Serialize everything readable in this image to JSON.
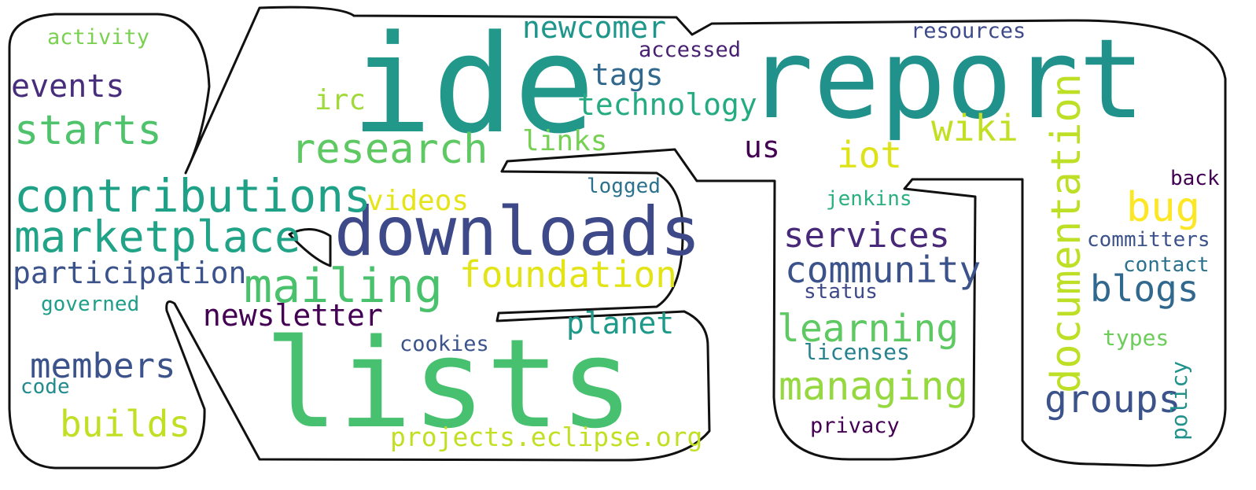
{
  "words": [
    {
      "text": "ide",
      "color": "#22988b"
    },
    {
      "text": "report",
      "color": "#21918c"
    },
    {
      "text": "lists",
      "color": "#47c06f"
    },
    {
      "text": "downloads",
      "color": "#3e4989"
    },
    {
      "text": "documentation",
      "color": "#bddf26"
    },
    {
      "text": "contributions",
      "color": "#1fa187"
    },
    {
      "text": "marketplace",
      "color": "#20a386"
    },
    {
      "text": "mailing",
      "color": "#4ac16d"
    },
    {
      "text": "starts",
      "color": "#4ec36b"
    },
    {
      "text": "research",
      "color": "#5ec962"
    },
    {
      "text": "foundation",
      "color": "#e2e418"
    },
    {
      "text": "managing",
      "color": "#95d840"
    },
    {
      "text": "learning",
      "color": "#5ec962"
    },
    {
      "text": "community",
      "color": "#3b528b"
    },
    {
      "text": "services",
      "color": "#482878"
    },
    {
      "text": "builds",
      "color": "#c0df25"
    },
    {
      "text": "members",
      "color": "#3b528b"
    },
    {
      "text": "participation",
      "color": "#3b528b"
    },
    {
      "text": "events",
      "color": "#472d7b"
    },
    {
      "text": "newsletter",
      "color": "#440154"
    },
    {
      "text": "groups",
      "color": "#3b528b"
    },
    {
      "text": "blogs",
      "color": "#31688e"
    },
    {
      "text": "bug",
      "color": "#fde725"
    },
    {
      "text": "wiki",
      "color": "#c2df23"
    },
    {
      "text": "iot",
      "color": "#dde318"
    },
    {
      "text": "technology",
      "color": "#25ab82"
    },
    {
      "text": "planet",
      "color": "#1f9a8a"
    },
    {
      "text": "tags",
      "color": "#31688e"
    },
    {
      "text": "newcomer",
      "color": "#1f968b"
    },
    {
      "text": "links",
      "color": "#75d054"
    },
    {
      "text": "videos",
      "color": "#e5e419"
    },
    {
      "text": "us",
      "color": "#440154"
    },
    {
      "text": "irc",
      "color": "#a0da39"
    },
    {
      "text": "projects.eclipse.org",
      "color": "#c2df23"
    },
    {
      "text": "cookies",
      "color": "#3b528b"
    },
    {
      "text": "accessed",
      "color": "#482173"
    },
    {
      "text": "resources",
      "color": "#3e4989"
    },
    {
      "text": "activity",
      "color": "#7ad151"
    },
    {
      "text": "governed",
      "color": "#1f9e89"
    },
    {
      "text": "code",
      "color": "#228c8d"
    },
    {
      "text": "logged",
      "color": "#2c728e"
    },
    {
      "text": "jenkins",
      "color": "#2ab07f"
    },
    {
      "text": "status",
      "color": "#3e4989"
    },
    {
      "text": "licenses",
      "color": "#26828e"
    },
    {
      "text": "privacy",
      "color": "#440154"
    },
    {
      "text": "back",
      "color": "#440154"
    },
    {
      "text": "committers",
      "color": "#3b528b"
    },
    {
      "text": "contact",
      "color": "#2c728e"
    },
    {
      "text": "types",
      "color": "#6ccd5a"
    },
    {
      "text": "policy",
      "color": "#21918c"
    }
  ]
}
